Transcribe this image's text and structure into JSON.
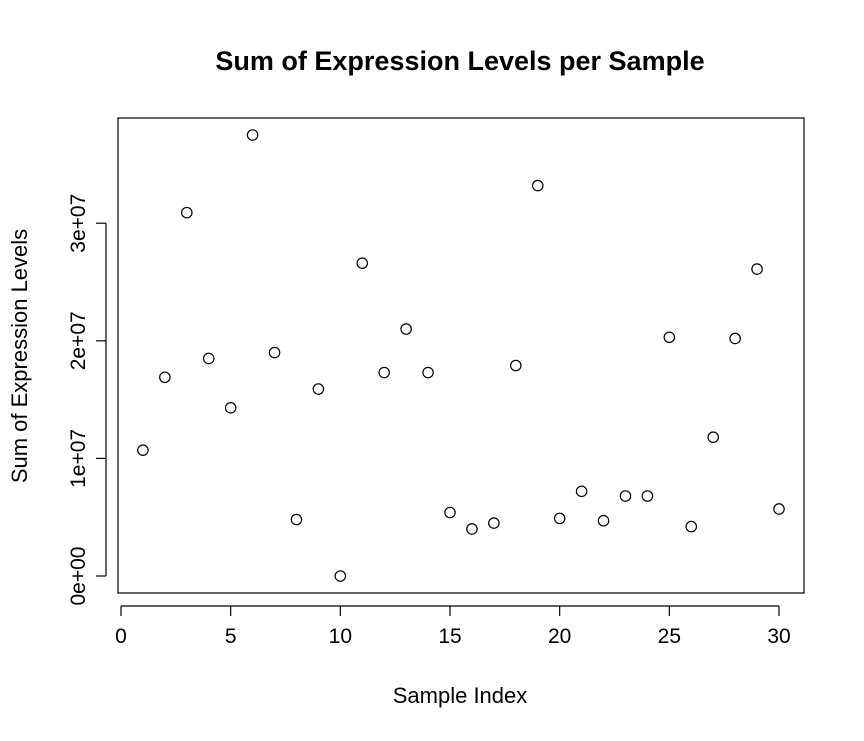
{
  "chart_data": {
    "type": "scatter",
    "title": "Sum of Expression Levels per Sample",
    "xlabel": "Sample Index",
    "ylabel": "Sum of Expression Levels",
    "xlim": [
      0,
      30
    ],
    "ylim": [
      0,
      37500000
    ],
    "x_ticks": [
      {
        "value": 0,
        "label": "0"
      },
      {
        "value": 5,
        "label": "5"
      },
      {
        "value": 10,
        "label": "10"
      },
      {
        "value": 15,
        "label": "15"
      },
      {
        "value": 20,
        "label": "20"
      },
      {
        "value": 25,
        "label": "25"
      },
      {
        "value": 30,
        "label": "30"
      }
    ],
    "y_ticks": [
      {
        "value": 0,
        "label": "0e+00"
      },
      {
        "value": 10000000,
        "label": "1e+07"
      },
      {
        "value": 20000000,
        "label": "2e+07"
      },
      {
        "value": 30000000,
        "label": "3e+07"
      }
    ],
    "grid": false,
    "marker": "open-circle",
    "marker_color": "#000000",
    "points": [
      {
        "x": 1,
        "y": 10700000
      },
      {
        "x": 2,
        "y": 16900000
      },
      {
        "x": 3,
        "y": 30900000
      },
      {
        "x": 4,
        "y": 18500000
      },
      {
        "x": 5,
        "y": 14300000
      },
      {
        "x": 6,
        "y": 37500000
      },
      {
        "x": 7,
        "y": 19000000
      },
      {
        "x": 8,
        "y": 4800000
      },
      {
        "x": 9,
        "y": 15900000
      },
      {
        "x": 10,
        "y": 0
      },
      {
        "x": 11,
        "y": 26600000
      },
      {
        "x": 12,
        "y": 17300000
      },
      {
        "x": 13,
        "y": 21000000
      },
      {
        "x": 14,
        "y": 17300000
      },
      {
        "x": 15,
        "y": 5400000
      },
      {
        "x": 16,
        "y": 4000000
      },
      {
        "x": 17,
        "y": 4500000
      },
      {
        "x": 18,
        "y": 17900000
      },
      {
        "x": 19,
        "y": 33200000
      },
      {
        "x": 20,
        "y": 4900000
      },
      {
        "x": 21,
        "y": 7200000
      },
      {
        "x": 22,
        "y": 4700000
      },
      {
        "x": 23,
        "y": 6800000
      },
      {
        "x": 24,
        "y": 6800000
      },
      {
        "x": 25,
        "y": 20300000
      },
      {
        "x": 26,
        "y": 4200000
      },
      {
        "x": 27,
        "y": 11800000
      },
      {
        "x": 28,
        "y": 20200000
      },
      {
        "x": 29,
        "y": 26100000
      },
      {
        "x": 30,
        "y": 5700000
      }
    ]
  }
}
